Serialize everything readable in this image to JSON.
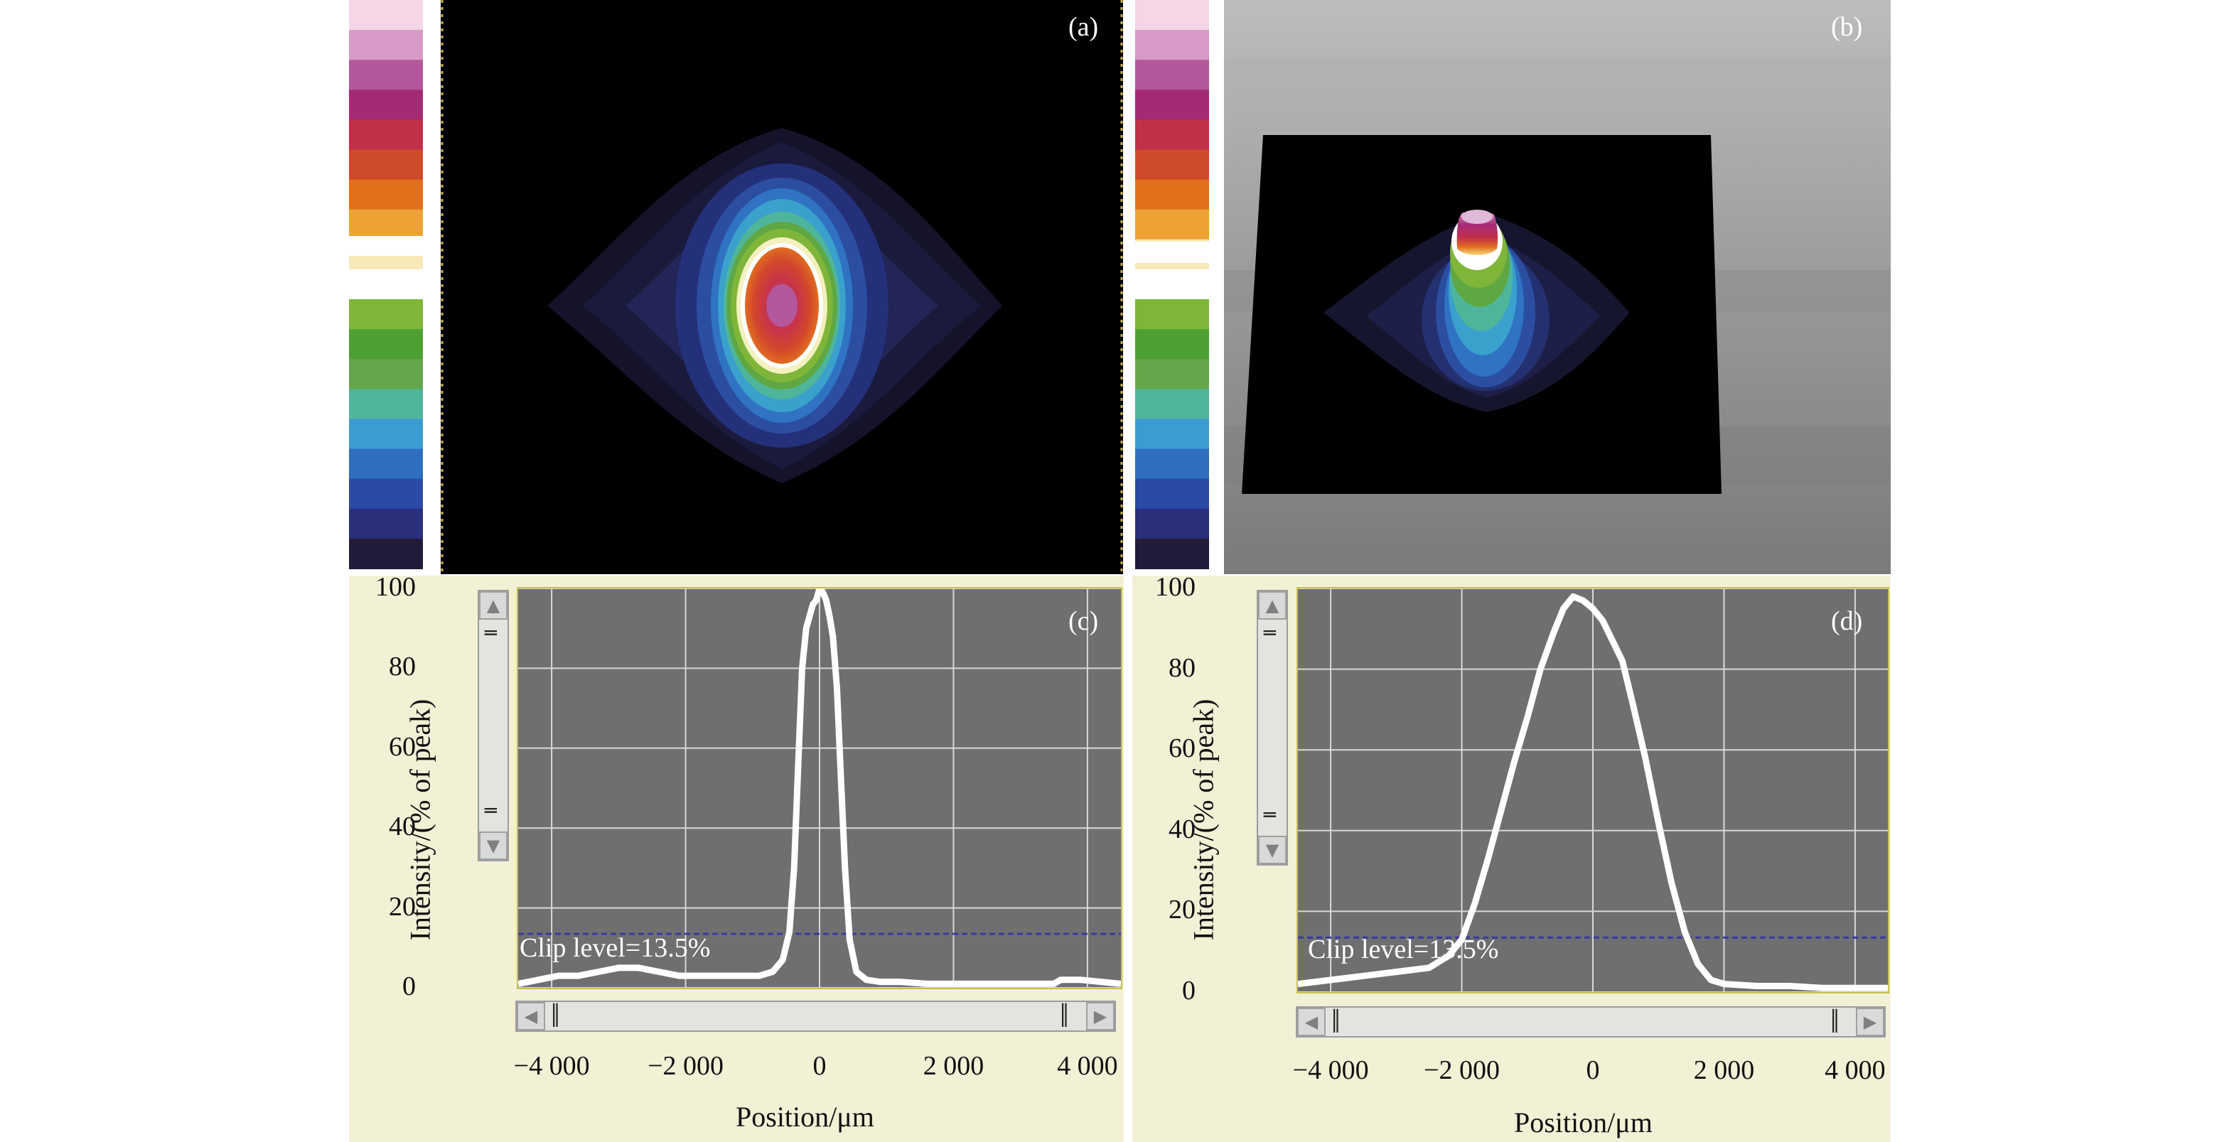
{
  "panels": {
    "a": {
      "letter": "(a)"
    },
    "b": {
      "letter": "(b)"
    },
    "c": {
      "letter": "(c)"
    },
    "d": {
      "letter": "(d)"
    }
  },
  "colorbar": {
    "stops": [
      "#f4d6e6",
      "#d89ac6",
      "#b4579c",
      "#a52a74",
      "#c23049",
      "#cf4a28",
      "#e0701c",
      "#eca234",
      "#f7e9b8",
      "#ffffff",
      "#7fb63a",
      "#4fa032",
      "#66a64a",
      "#4fb69c",
      "#3a9cd0",
      "#2f6fc0",
      "#2a4aa6",
      "#2a2f7a",
      "#221c3a"
    ],
    "gap_color": "#ffffff"
  },
  "chart_data": [
    {
      "panel": "c",
      "type": "line",
      "title": "",
      "xlabel": "Position/μm",
      "ylabel": "Intensity/(% of peak)",
      "xlim": [
        -4500,
        4500
      ],
      "ylim": [
        0,
        100
      ],
      "xticks": [
        -4000,
        -2000,
        0,
        2000,
        4000
      ],
      "xtick_labels": [
        "−4 000",
        "−2 000",
        "0",
        "2 000",
        "4 000"
      ],
      "yticks": [
        0,
        20,
        40,
        60,
        80,
        100
      ],
      "ytick_labels": [
        "0",
        "20",
        "40",
        "60",
        "80",
        "100"
      ],
      "grid": true,
      "clip_level": 13.5,
      "clip_label": "Clip level=13.5%",
      "series": [
        {
          "x": [
            -4500,
            -4200,
            -3900,
            -3600,
            -3300,
            -3000,
            -2700,
            -2400,
            -2100,
            -1800,
            -1500,
            -1200,
            -900,
            -700,
            -550,
            -450,
            -380,
            -320,
            -260,
            -200,
            -150,
            -100,
            -50,
            0,
            50,
            100,
            150,
            200,
            260,
            320,
            380,
            450,
            550,
            700,
            900,
            1200,
            1600,
            2000,
            2400,
            2800,
            3200,
            3500,
            3600,
            3900,
            4200,
            4500
          ],
          "y": [
            1,
            2,
            3,
            3,
            4,
            5,
            5,
            4,
            3,
            3,
            3,
            3,
            3,
            4,
            7,
            14,
            30,
            55,
            80,
            90,
            93,
            96,
            97,
            100,
            99,
            97,
            93,
            88,
            75,
            52,
            30,
            12,
            4,
            2,
            1.5,
            1.5,
            1,
            1,
            1,
            1,
            1,
            1,
            2,
            2,
            1.5,
            1
          ]
        }
      ]
    },
    {
      "panel": "d",
      "type": "line",
      "title": "",
      "xlabel": "Position/μm",
      "ylabel": "Intensity/(% of peak)",
      "xlim": [
        -4500,
        4500
      ],
      "ylim": [
        0,
        100
      ],
      "xticks": [
        -4000,
        -2000,
        0,
        2000,
        4000
      ],
      "xtick_labels": [
        "−4 000",
        "−2 000",
        "0",
        "2 000",
        "4 000"
      ],
      "yticks": [
        0,
        20,
        40,
        60,
        80,
        100
      ],
      "ytick_labels": [
        "0",
        "20",
        "40",
        "60",
        "80",
        "100"
      ],
      "grid": true,
      "clip_level": 13.5,
      "clip_label": "Clip level=13.5%",
      "series": [
        {
          "x": [
            -4500,
            -4000,
            -3500,
            -3000,
            -2500,
            -2200,
            -2000,
            -1800,
            -1600,
            -1400,
            -1200,
            -1000,
            -800,
            -600,
            -450,
            -300,
            -150,
            0,
            150,
            300,
            450,
            600,
            800,
            1000,
            1200,
            1400,
            1600,
            1800,
            2000,
            2500,
            3000,
            3500,
            4000,
            4500
          ],
          "y": [
            2,
            3,
            4,
            5,
            6,
            9,
            13,
            22,
            33,
            45,
            57,
            68,
            80,
            89,
            95,
            98,
            97,
            95,
            92,
            87,
            82,
            72,
            58,
            42,
            27,
            15,
            7,
            3,
            2,
            1.5,
            1.5,
            1,
            1,
            1
          ]
        }
      ]
    }
  ]
}
